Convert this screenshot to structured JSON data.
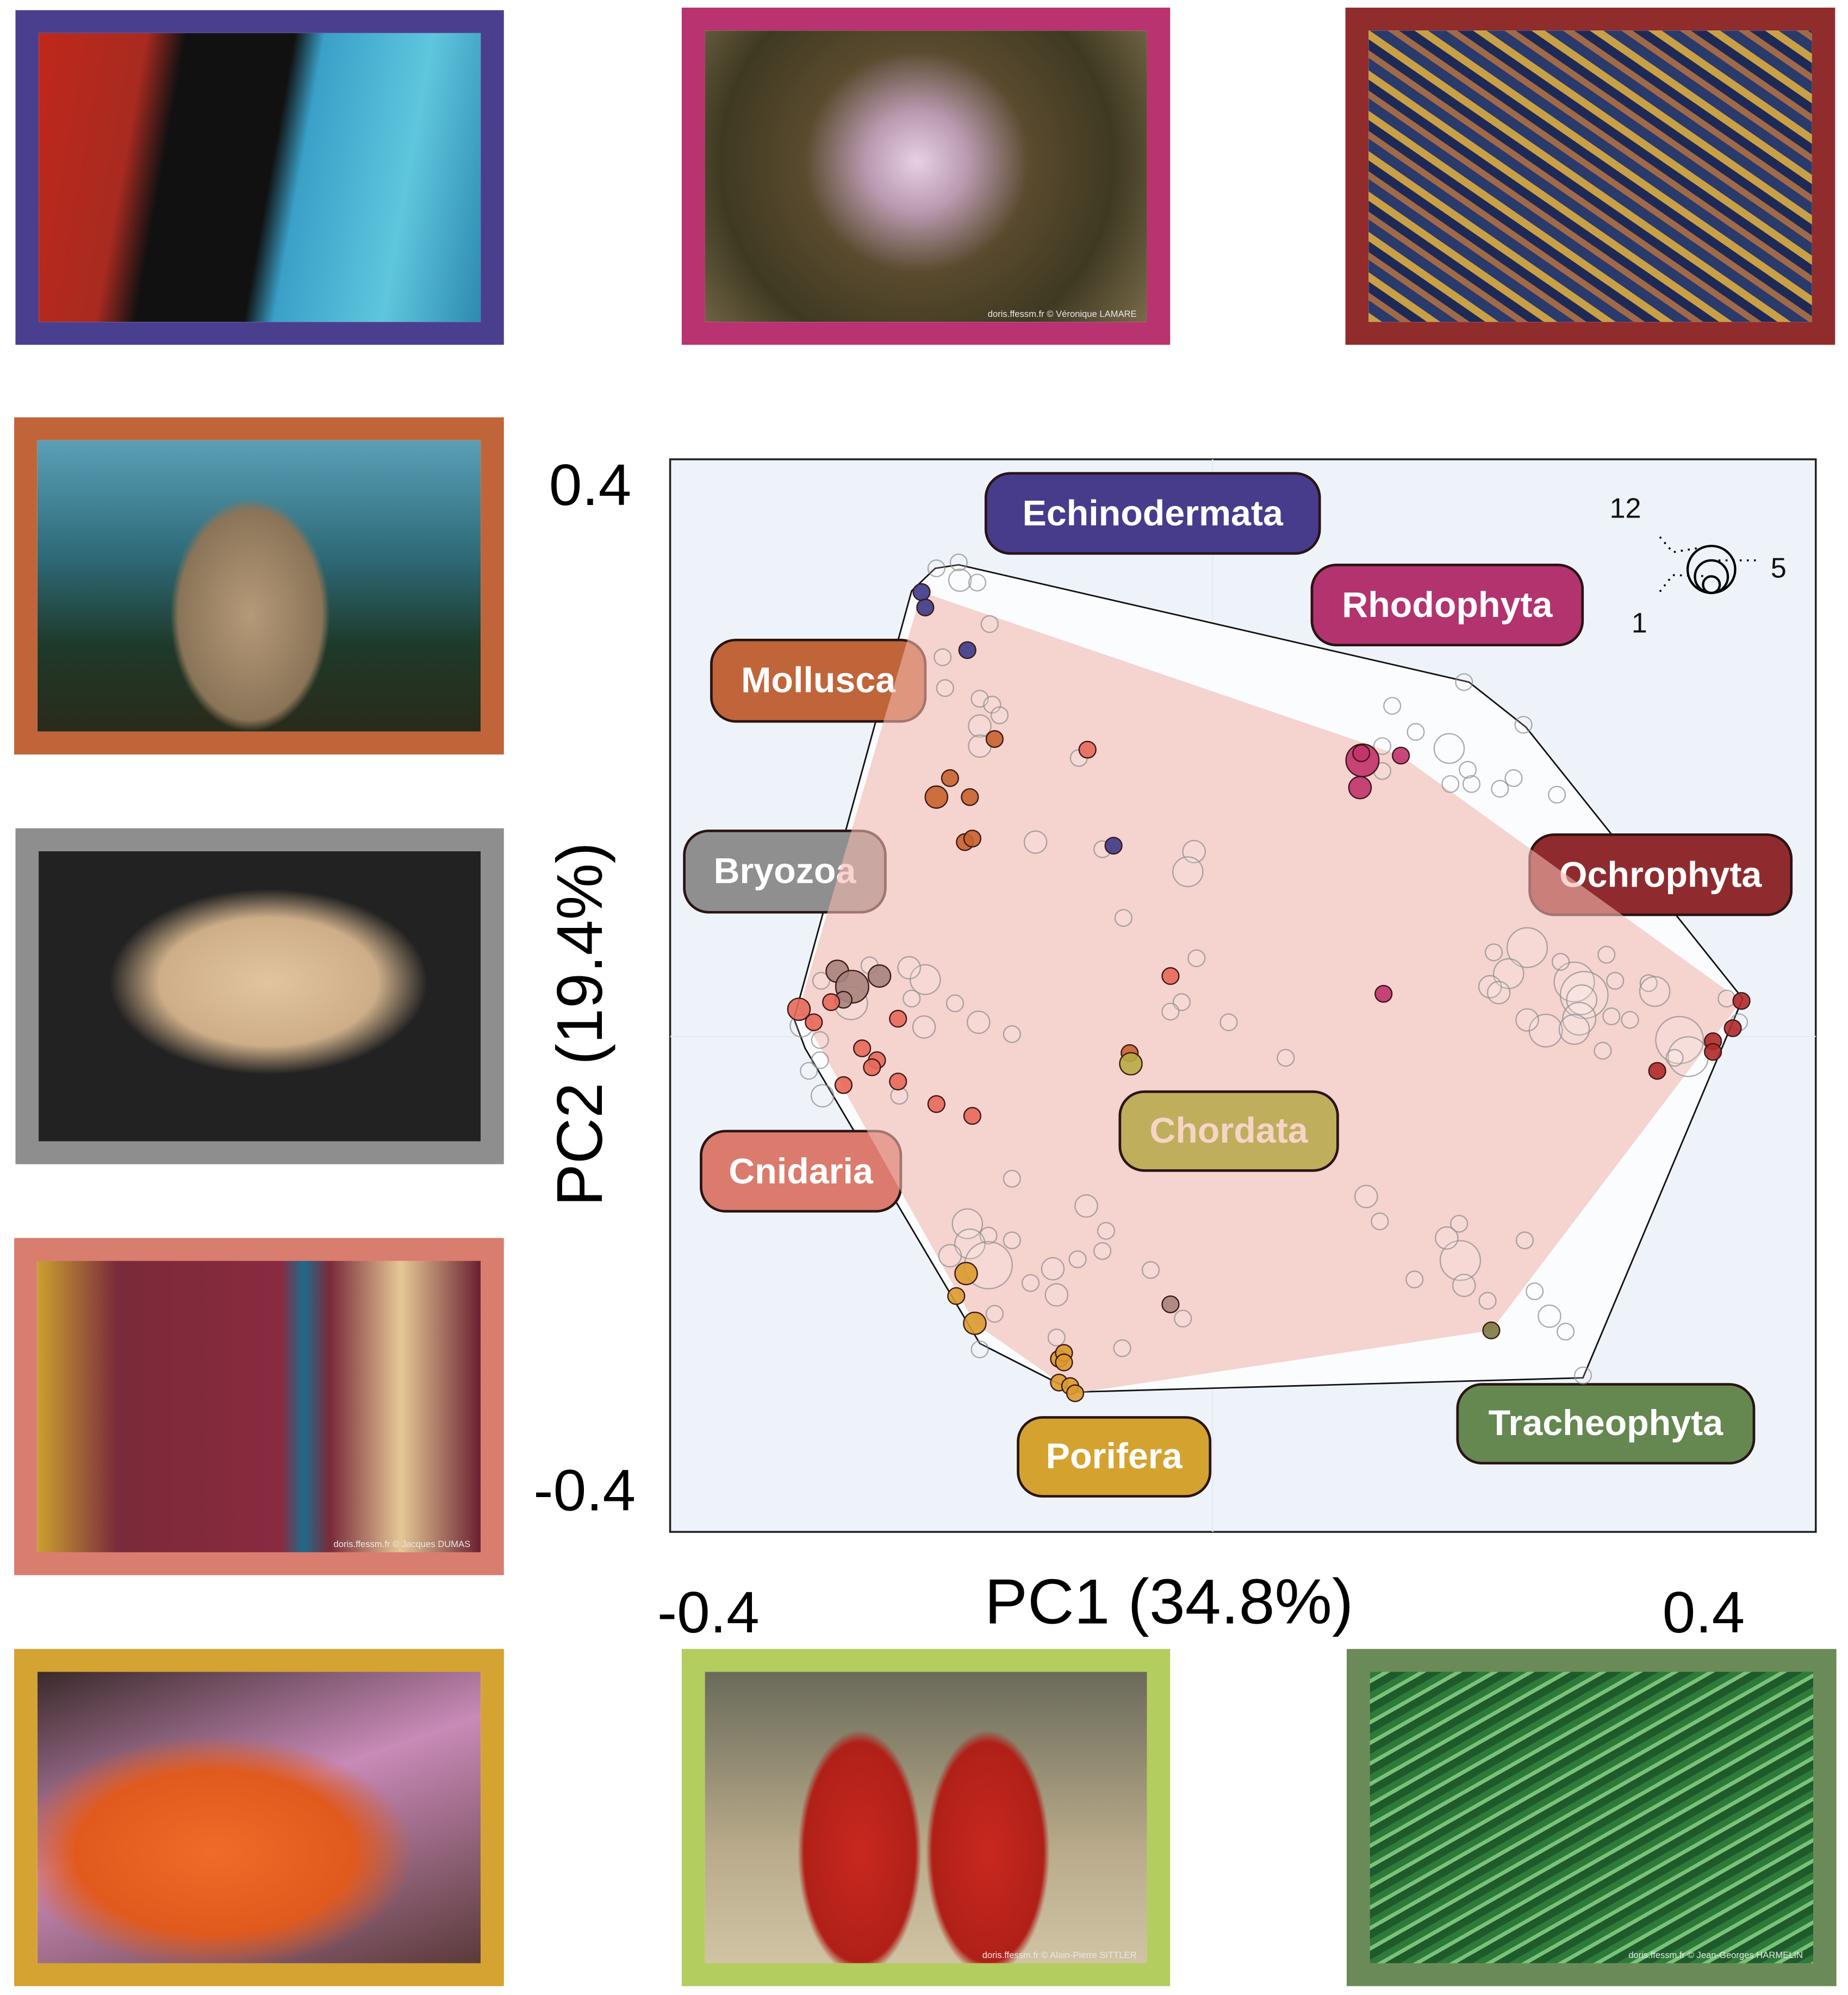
{
  "photos": [
    {
      "group": "Echinodermata",
      "frame": "#4a3f8e",
      "credit": ""
    },
    {
      "group": "Rhodophyta",
      "frame": "#b8336f",
      "credit": "doris.ffessm.fr  ©  Véronique LAMARE"
    },
    {
      "group": "Ochrophyta",
      "frame": "#902c2c",
      "credit": ""
    },
    {
      "group": "Mollusca",
      "frame": "#c0643a",
      "credit": ""
    },
    {
      "group": "Bryozoa",
      "frame": "#8e8e8e",
      "credit": ""
    },
    {
      "group": "Cnidaria",
      "frame": "#d97d6e",
      "credit": "doris.ffessm.fr  ©  Jacques DUMAS"
    },
    {
      "group": "Porifera",
      "frame": "#d4a331",
      "credit": ""
    },
    {
      "group": "Chordata",
      "frame": "#b3cd5f",
      "credit": "doris.ffessm.fr  ©  Alain-Pierre SITTLER"
    },
    {
      "group": "Tracheophyta",
      "frame": "#6a8b57",
      "credit": "doris.ffessm.fr  ©  Jean-Georges HARMELIN"
    }
  ],
  "chart_data": {
    "type": "scatter",
    "xlabel": "PC1 (34.8%)",
    "ylabel": "PC2 (19.4%)",
    "x_ticks": [
      "-0.4",
      "0.4"
    ],
    "y_ticks": [
      "0.4",
      "-0.4"
    ],
    "xlim": [
      -0.438,
      0.487
    ],
    "ylim": [
      -0.418,
      0.487
    ],
    "grid": true,
    "background": "#eef3fa",
    "size_legend": {
      "placement": "top-right",
      "values": [
        12,
        5,
        1
      ],
      "labels": [
        "12",
        "5",
        "1"
      ]
    },
    "groups": [
      {
        "name": "Echinodermata",
        "label_color": "#473b8c",
        "point_color": "#3d3a8a",
        "text_color": "#ffffff"
      },
      {
        "name": "Rhodophyta",
        "label_color": "#b3336f",
        "point_color": "#c2336b",
        "text_color": "#ffffff"
      },
      {
        "name": "Mollusca",
        "label_color": "#c0643a",
        "point_color": "#c8632f",
        "text_color": "#ffffff"
      },
      {
        "name": "Bryozoa",
        "label_color": "#8f8f8f",
        "point_color": "#a8837e",
        "text_color": "#ffffff"
      },
      {
        "name": "Ochrophyta",
        "label_color": "#8f2b2e",
        "point_color": "#b02a2a",
        "text_color": "#ffffff"
      },
      {
        "name": "Chordata",
        "label_color": "#bfae5c",
        "point_color": "#b8ab45",
        "text_color": "#f6d4c6"
      },
      {
        "name": "Cnidaria",
        "label_color": "#da7b6d",
        "point_color": "#e8695a",
        "text_color": "#ffffff"
      },
      {
        "name": "Porifera",
        "label_color": "#d4a32f",
        "point_color": "#dc9a2e",
        "text_color": "#ffffff"
      },
      {
        "name": "Tracheophyta",
        "label_color": "#64884f",
        "point_color": "#7a7a40",
        "text_color": "#ffffff"
      }
    ],
    "outer_hull": [
      [
        -0.243,
        0.376
      ],
      [
        -0.224,
        0.395
      ],
      [
        -0.205,
        0.398
      ],
      [
        0.207,
        0.299
      ],
      [
        0.253,
        0.261
      ],
      [
        0.428,
        0.032
      ],
      [
        0.299,
        -0.288
      ],
      [
        -0.111,
        -0.3
      ],
      [
        -0.188,
        -0.259
      ],
      [
        -0.329,
        -0.01
      ],
      [
        -0.338,
        0.015
      ]
    ],
    "assigned_hull": {
      "color": "#f2b8ae",
      "points": [
        [
          -0.235,
          0.375
        ],
        [
          0.152,
          0.237
        ],
        [
          0.427,
          0.03
        ],
        [
          0.225,
          -0.248
        ],
        [
          -0.111,
          -0.301
        ],
        [
          -0.192,
          -0.242
        ],
        [
          -0.334,
          0.023
        ]
      ]
    },
    "assigned_points": [
      {
        "x": -0.235,
        "y": 0.375,
        "n": 1,
        "group": "Echinodermata"
      },
      {
        "x": -0.232,
        "y": 0.362,
        "n": 1,
        "group": "Echinodermata"
      },
      {
        "x": -0.198,
        "y": 0.326,
        "n": 1,
        "group": "Echinodermata"
      },
      {
        "x": -0.08,
        "y": 0.161,
        "n": 1,
        "group": "Echinodermata"
      },
      {
        "x": -0.176,
        "y": 0.251,
        "n": 1,
        "group": "Mollusca"
      },
      {
        "x": -0.212,
        "y": 0.218,
        "n": 1,
        "group": "Mollusca"
      },
      {
        "x": -0.223,
        "y": 0.202,
        "n": 2,
        "group": "Mollusca"
      },
      {
        "x": -0.196,
        "y": 0.202,
        "n": 1,
        "group": "Mollusca"
      },
      {
        "x": -0.2,
        "y": 0.164,
        "n": 1,
        "group": "Mollusca"
      },
      {
        "x": -0.194,
        "y": 0.167,
        "n": 1,
        "group": "Mollusca"
      },
      {
        "x": -0.067,
        "y": -0.014,
        "n": 1,
        "group": "Mollusca"
      },
      {
        "x": 0.121,
        "y": 0.233,
        "n": 5,
        "group": "Rhodophyta"
      },
      {
        "x": 0.12,
        "y": 0.239,
        "n": 1,
        "group": "Rhodophyta"
      },
      {
        "x": 0.119,
        "y": 0.21,
        "n": 2,
        "group": "Rhodophyta"
      },
      {
        "x": 0.152,
        "y": 0.237,
        "n": 1,
        "group": "Rhodophyta"
      },
      {
        "x": 0.138,
        "y": 0.036,
        "n": 1,
        "group": "Rhodophyta"
      },
      {
        "x": 0.427,
        "y": 0.03,
        "n": 1,
        "group": "Ochrophyta"
      },
      {
        "x": 0.42,
        "y": 0.007,
        "n": 1,
        "group": "Ochrophyta"
      },
      {
        "x": 0.404,
        "y": -0.004,
        "n": 1,
        "group": "Ochrophyta"
      },
      {
        "x": 0.404,
        "y": -0.013,
        "n": 1,
        "group": "Ochrophyta"
      },
      {
        "x": 0.359,
        "y": -0.029,
        "n": 1,
        "group": "Ochrophyta"
      },
      {
        "x": -0.303,
        "y": 0.055,
        "n": 2,
        "group": "Bryozoa"
      },
      {
        "x": -0.291,
        "y": 0.042,
        "n": 5,
        "group": "Bryozoa"
      },
      {
        "x": -0.269,
        "y": 0.051,
        "n": 2,
        "group": "Bryozoa"
      },
      {
        "x": -0.298,
        "y": 0.031,
        "n": 1,
        "group": "Bryozoa"
      },
      {
        "x": -0.034,
        "y": -0.226,
        "n": 1,
        "group": "Bryozoa"
      },
      {
        "x": -0.334,
        "y": 0.023,
        "n": 2,
        "group": "Cnidaria"
      },
      {
        "x": -0.322,
        "y": 0.012,
        "n": 1,
        "group": "Cnidaria"
      },
      {
        "x": -0.308,
        "y": 0.029,
        "n": 1,
        "group": "Cnidaria"
      },
      {
        "x": -0.254,
        "y": 0.015,
        "n": 1,
        "group": "Cnidaria"
      },
      {
        "x": -0.283,
        "y": -0.01,
        "n": 1,
        "group": "Cnidaria"
      },
      {
        "x": -0.271,
        "y": -0.02,
        "n": 1,
        "group": "Cnidaria"
      },
      {
        "x": -0.275,
        "y": -0.026,
        "n": 1,
        "group": "Cnidaria"
      },
      {
        "x": -0.298,
        "y": -0.041,
        "n": 1,
        "group": "Cnidaria"
      },
      {
        "x": -0.254,
        "y": -0.038,
        "n": 1,
        "group": "Cnidaria"
      },
      {
        "x": -0.223,
        "y": -0.057,
        "n": 1,
        "group": "Cnidaria"
      },
      {
        "x": -0.194,
        "y": -0.067,
        "n": 1,
        "group": "Cnidaria"
      },
      {
        "x": -0.101,
        "y": 0.242,
        "n": 1,
        "group": "Cnidaria"
      },
      {
        "x": -0.034,
        "y": 0.051,
        "n": 1,
        "group": "Cnidaria"
      },
      {
        "x": -0.066,
        "y": -0.023,
        "n": 2,
        "group": "Chordata"
      },
      {
        "x": 0.225,
        "y": -0.248,
        "n": 1,
        "group": "Tracheophyta"
      },
      {
        "x": -0.199,
        "y": -0.2,
        "n": 2,
        "group": "Porifera"
      },
      {
        "x": -0.207,
        "y": -0.219,
        "n": 1,
        "group": "Porifera"
      },
      {
        "x": -0.192,
        "y": -0.242,
        "n": 2,
        "group": "Porifera"
      },
      {
        "x": -0.124,
        "y": -0.272,
        "n": 1,
        "group": "Porifera"
      },
      {
        "x": -0.12,
        "y": -0.267,
        "n": 1,
        "group": "Porifera"
      },
      {
        "x": -0.12,
        "y": -0.275,
        "n": 1,
        "group": "Porifera"
      },
      {
        "x": -0.124,
        "y": -0.292,
        "n": 1,
        "group": "Porifera"
      },
      {
        "x": -0.115,
        "y": -0.295,
        "n": 1,
        "group": "Porifera"
      },
      {
        "x": -0.111,
        "y": -0.301,
        "n": 1,
        "group": "Porifera"
      }
    ],
    "unassigned_points": [
      {
        "x": -0.223,
        "y": 0.395,
        "n": 1
      },
      {
        "x": -0.205,
        "y": 0.4,
        "n": 1
      },
      {
        "x": -0.204,
        "y": 0.385,
        "n": 2
      },
      {
        "x": -0.19,
        "y": 0.383,
        "n": 1
      },
      {
        "x": -0.18,
        "y": 0.348,
        "n": 1
      },
      {
        "x": -0.218,
        "y": 0.32,
        "n": 1
      },
      {
        "x": -0.216,
        "y": 0.294,
        "n": 1
      },
      {
        "x": -0.188,
        "y": 0.285,
        "n": 1
      },
      {
        "x": -0.178,
        "y": 0.28,
        "n": 1
      },
      {
        "x": -0.172,
        "y": 0.271,
        "n": 1
      },
      {
        "x": -0.188,
        "y": 0.262,
        "n": 2
      },
      {
        "x": -0.188,
        "y": 0.245,
        "n": 2
      },
      {
        "x": -0.108,
        "y": 0.235,
        "n": 1
      },
      {
        "x": 0.145,
        "y": 0.279,
        "n": 1
      },
      {
        "x": 0.203,
        "y": 0.299,
        "n": 1
      },
      {
        "x": 0.251,
        "y": 0.263,
        "n": 1
      },
      {
        "x": 0.164,
        "y": 0.257,
        "n": 1
      },
      {
        "x": 0.191,
        "y": 0.243,
        "n": 4
      },
      {
        "x": 0.137,
        "y": 0.245,
        "n": 1
      },
      {
        "x": 0.137,
        "y": 0.224,
        "n": 1
      },
      {
        "x": 0.206,
        "y": 0.225,
        "n": 1
      },
      {
        "x": 0.192,
        "y": 0.213,
        "n": 1
      },
      {
        "x": 0.209,
        "y": 0.213,
        "n": 1
      },
      {
        "x": 0.232,
        "y": 0.209,
        "n": 1
      },
      {
        "x": 0.243,
        "y": 0.218,
        "n": 1
      },
      {
        "x": 0.278,
        "y": 0.204,
        "n": 1
      },
      {
        "x": -0.143,
        "y": 0.164,
        "n": 2
      },
      {
        "x": -0.015,
        "y": 0.156,
        "n": 2
      },
      {
        "x": -0.02,
        "y": 0.139,
        "n": 4
      },
      {
        "x": -0.089,
        "y": 0.158,
        "n": 1
      },
      {
        "x": -0.072,
        "y": 0.1,
        "n": 1
      },
      {
        "x": -0.013,
        "y": 0.066,
        "n": 1
      },
      {
        "x": -0.025,
        "y": 0.029,
        "n": 1
      },
      {
        "x": -0.034,
        "y": 0.021,
        "n": 1
      },
      {
        "x": 0.013,
        "y": 0.012,
        "n": 1
      },
      {
        "x": 0.059,
        "y": -0.018,
        "n": 1
      },
      {
        "x": -0.162,
        "y": 0.002,
        "n": 1
      },
      {
        "x": -0.189,
        "y": 0.012,
        "n": 2
      },
      {
        "x": -0.208,
        "y": 0.028,
        "n": 1
      },
      {
        "x": -0.232,
        "y": 0.048,
        "n": 4
      },
      {
        "x": -0.245,
        "y": 0.058,
        "n": 2
      },
      {
        "x": -0.243,
        "y": 0.032,
        "n": 1
      },
      {
        "x": -0.233,
        "y": 0.008,
        "n": 2
      },
      {
        "x": -0.277,
        "y": 0.06,
        "n": 1
      },
      {
        "x": -0.316,
        "y": 0.047,
        "n": 1
      },
      {
        "x": -0.292,
        "y": 0.028,
        "n": 5
      },
      {
        "x": -0.332,
        "y": 0.009,
        "n": 2
      },
      {
        "x": -0.317,
        "y": -0.003,
        "n": 1
      },
      {
        "x": -0.317,
        "y": -0.02,
        "n": 1
      },
      {
        "x": -0.326,
        "y": -0.029,
        "n": 1
      },
      {
        "x": -0.315,
        "y": -0.05,
        "n": 2
      },
      {
        "x": -0.253,
        "y": -0.05,
        "n": 1
      },
      {
        "x": -0.162,
        "y": -0.12,
        "n": 1
      },
      {
        "x": -0.102,
        "y": -0.143,
        "n": 2
      },
      {
        "x": -0.086,
        "y": -0.164,
        "n": 1
      },
      {
        "x": -0.089,
        "y": -0.181,
        "n": 1
      },
      {
        "x": -0.109,
        "y": -0.188,
        "n": 1
      },
      {
        "x": -0.05,
        "y": -0.197,
        "n": 1
      },
      {
        "x": -0.129,
        "y": -0.196,
        "n": 2
      },
      {
        "x": -0.147,
        "y": -0.208,
        "n": 1
      },
      {
        "x": -0.126,
        "y": -0.218,
        "n": 2
      },
      {
        "x": -0.162,
        "y": -0.172,
        "n": 1
      },
      {
        "x": -0.198,
        "y": -0.158,
        "n": 4
      },
      {
        "x": -0.181,
        "y": -0.168,
        "n": 1
      },
      {
        "x": -0.196,
        "y": -0.175,
        "n": 4
      },
      {
        "x": -0.181,
        "y": -0.193,
        "n": 12
      },
      {
        "x": -0.212,
        "y": -0.185,
        "n": 2
      },
      {
        "x": -0.176,
        "y": -0.234,
        "n": 1
      },
      {
        "x": -0.188,
        "y": -0.264,
        "n": 1
      },
      {
        "x": -0.073,
        "y": -0.263,
        "n": 1
      },
      {
        "x": -0.024,
        "y": -0.238,
        "n": 1
      },
      {
        "x": -0.126,
        "y": -0.254,
        "n": 1
      },
      {
        "x": 0.124,
        "y": -0.135,
        "n": 2
      },
      {
        "x": 0.135,
        "y": -0.156,
        "n": 1
      },
      {
        "x": 0.2,
        "y": -0.189,
        "n": 8
      },
      {
        "x": 0.189,
        "y": -0.17,
        "n": 2
      },
      {
        "x": 0.199,
        "y": -0.158,
        "n": 1
      },
      {
        "x": 0.203,
        "y": -0.21,
        "n": 2
      },
      {
        "x": 0.163,
        "y": -0.205,
        "n": 1
      },
      {
        "x": 0.252,
        "y": -0.172,
        "n": 1
      },
      {
        "x": 0.26,
        "y": -0.215,
        "n": 1
      },
      {
        "x": 0.272,
        "y": -0.236,
        "n": 2
      },
      {
        "x": 0.285,
        "y": -0.249,
        "n": 1
      },
      {
        "x": 0.299,
        "y": -0.286,
        "n": 1
      },
      {
        "x": 0.222,
        "y": -0.223,
        "n": 1
      },
      {
        "x": 0.227,
        "y": 0.071,
        "n": 1
      },
      {
        "x": 0.254,
        "y": 0.075,
        "n": 8
      },
      {
        "x": 0.239,
        "y": 0.053,
        "n": 4
      },
      {
        "x": 0.224,
        "y": 0.042,
        "n": 2
      },
      {
        "x": 0.231,
        "y": 0.037,
        "n": 2
      },
      {
        "x": 0.318,
        "y": 0.069,
        "n": 1
      },
      {
        "x": 0.325,
        "y": 0.047,
        "n": 1
      },
      {
        "x": 0.292,
        "y": 0.046,
        "n": 8
      },
      {
        "x": 0.3,
        "y": 0.035,
        "n": 12
      },
      {
        "x": 0.298,
        "y": 0.031,
        "n": 4
      },
      {
        "x": 0.296,
        "y": 0.015,
        "n": 5
      },
      {
        "x": 0.269,
        "y": 0.005,
        "n": 5
      },
      {
        "x": 0.254,
        "y": 0.014,
        "n": 2
      },
      {
        "x": 0.292,
        "y": 0.006,
        "n": 4
      },
      {
        "x": 0.315,
        "y": -0.012,
        "n": 1
      },
      {
        "x": 0.337,
        "y": 0.014,
        "n": 1
      },
      {
        "x": 0.352,
        "y": 0.045,
        "n": 1
      },
      {
        "x": 0.357,
        "y": 0.038,
        "n": 4
      },
      {
        "x": 0.377,
        "y": -0.003,
        "n": 12
      },
      {
        "x": 0.384,
        "y": -0.017,
        "n": 8
      },
      {
        "x": 0.373,
        "y": -0.018,
        "n": 1
      },
      {
        "x": 0.425,
        "y": 0.012,
        "n": 1
      },
      {
        "x": 0.415,
        "y": 0.032,
        "n": 1
      },
      {
        "x": 0.281,
        "y": 0.063,
        "n": 1
      },
      {
        "x": 0.322,
        "y": 0.017,
        "n": 1
      }
    ]
  }
}
